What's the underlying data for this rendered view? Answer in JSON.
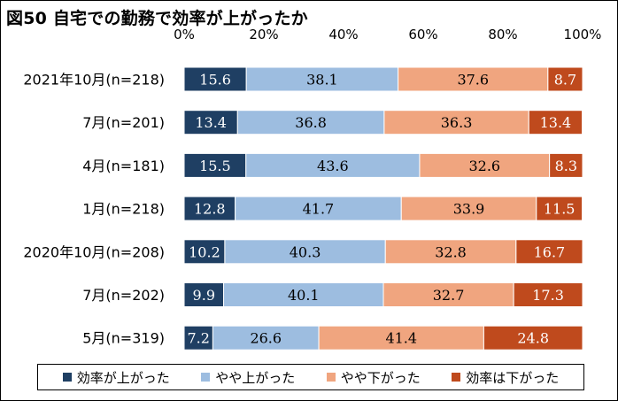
{
  "title": "図50 自宅での勤務で効率が上がったか",
  "chart_data": {
    "type": "bar",
    "orientation": "horizontal",
    "stacked": true,
    "title": "図50 自宅での勤務で効率が上がったか",
    "xlim": [
      0,
      100
    ],
    "x_ticks": [
      "0%",
      "20%",
      "40%",
      "60%",
      "80%",
      "100%"
    ],
    "categories": [
      "2021年10月(n=218)",
      "7月(n=201)",
      "4月(n=181)",
      "1月(n=218)",
      "2020年10月(n=208)",
      "7月(n=202)",
      "5月(n=319)"
    ],
    "series": [
      {
        "name": "効率が上がった",
        "color": "#1f3f63",
        "label_color": "#ffffff",
        "values": [
          15.6,
          13.4,
          15.5,
          12.8,
          10.2,
          9.9,
          7.2
        ]
      },
      {
        "name": "やや上がった",
        "color": "#9dbde0",
        "label_color": "#000000",
        "values": [
          38.1,
          36.8,
          43.6,
          41.7,
          40.3,
          40.1,
          26.6
        ]
      },
      {
        "name": "やや下がった",
        "color": "#f0a57f",
        "label_color": "#000000",
        "values": [
          37.6,
          36.3,
          32.6,
          33.9,
          32.8,
          32.7,
          41.4
        ]
      },
      {
        "name": "効率は下がった",
        "color": "#bf4a1d",
        "label_color": "#ffffff",
        "values": [
          8.7,
          13.4,
          8.3,
          11.5,
          16.7,
          17.3,
          24.8
        ]
      }
    ],
    "legend_position": "bottom",
    "grid": false
  }
}
